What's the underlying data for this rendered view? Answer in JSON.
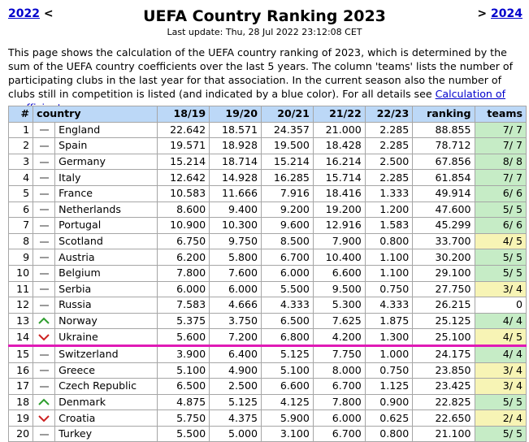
{
  "nav": {
    "prev": "2022",
    "prev_arrow": "<",
    "next_arrow": ">",
    "next": "2024"
  },
  "header": {
    "title": "UEFA Country Ranking 2023",
    "updated": "Last update: Thu, 28 Jul 2022 23:12:08 CET"
  },
  "intro": {
    "text": "This page shows the calculation of the UEFA country ranking of 2023, which is determined by the sum of the UEFA country coefficients over the last 5 years. The column 'teams' lists the number of participating clubs in the last year for that association. In the current season also the number of clubs still in competition is listed (and indicated by a blue color). For all details see ",
    "link": "Calculation of coefficients",
    "end": "."
  },
  "colors": {
    "up": "#2e9e2e",
    "down": "#cc2222",
    "neutral": "#9a9a9a",
    "cutline": "#e01ab6",
    "header_bg": "#bcd8f7",
    "teams_full": "#c6ecc6",
    "teams_partial": "#f7f4b5"
  },
  "table": {
    "headers": [
      "#",
      "country",
      "18/19",
      "19/20",
      "20/21",
      "21/22",
      "22/23",
      "ranking",
      "teams"
    ],
    "rows": [
      {
        "rank": "1",
        "trend": "neutral",
        "country": "England",
        "s1": "22.642",
        "s2": "18.571",
        "s3": "24.357",
        "s4": "21.000",
        "s5": "2.285",
        "ranking": "88.855",
        "teams": "7/ 7",
        "teams_status": "full"
      },
      {
        "rank": "2",
        "trend": "neutral",
        "country": "Spain",
        "s1": "19.571",
        "s2": "18.928",
        "s3": "19.500",
        "s4": "18.428",
        "s5": "2.285",
        "ranking": "78.712",
        "teams": "7/ 7",
        "teams_status": "full"
      },
      {
        "rank": "3",
        "trend": "neutral",
        "country": "Germany",
        "s1": "15.214",
        "s2": "18.714",
        "s3": "15.214",
        "s4": "16.214",
        "s5": "2.500",
        "ranking": "67.856",
        "teams": "8/ 8",
        "teams_status": "full"
      },
      {
        "rank": "4",
        "trend": "neutral",
        "country": "Italy",
        "s1": "12.642",
        "s2": "14.928",
        "s3": "16.285",
        "s4": "15.714",
        "s5": "2.285",
        "ranking": "61.854",
        "teams": "7/ 7",
        "teams_status": "full"
      },
      {
        "rank": "5",
        "trend": "neutral",
        "country": "France",
        "s1": "10.583",
        "s2": "11.666",
        "s3": "7.916",
        "s4": "18.416",
        "s5": "1.333",
        "ranking": "49.914",
        "teams": "6/ 6",
        "teams_status": "full"
      },
      {
        "rank": "6",
        "trend": "neutral",
        "country": "Netherlands",
        "s1": "8.600",
        "s2": "9.400",
        "s3": "9.200",
        "s4": "19.200",
        "s5": "1.200",
        "ranking": "47.600",
        "teams": "5/ 5",
        "teams_status": "full"
      },
      {
        "rank": "7",
        "trend": "neutral",
        "country": "Portugal",
        "s1": "10.900",
        "s2": "10.300",
        "s3": "9.600",
        "s4": "12.916",
        "s5": "1.583",
        "ranking": "45.299",
        "teams": "6/ 6",
        "teams_status": "full"
      },
      {
        "rank": "8",
        "trend": "neutral",
        "country": "Scotland",
        "s1": "6.750",
        "s2": "9.750",
        "s3": "8.500",
        "s4": "7.900",
        "s5": "0.800",
        "ranking": "33.700",
        "teams": "4/ 5",
        "teams_status": "partial"
      },
      {
        "rank": "9",
        "trend": "neutral",
        "country": "Austria",
        "s1": "6.200",
        "s2": "5.800",
        "s3": "6.700",
        "s4": "10.400",
        "s5": "1.100",
        "ranking": "30.200",
        "teams": "5/ 5",
        "teams_status": "full"
      },
      {
        "rank": "10",
        "trend": "neutral",
        "country": "Belgium",
        "s1": "7.800",
        "s2": "7.600",
        "s3": "6.000",
        "s4": "6.600",
        "s5": "1.100",
        "ranking": "29.100",
        "teams": "5/ 5",
        "teams_status": "full"
      },
      {
        "rank": "11",
        "trend": "neutral",
        "country": "Serbia",
        "s1": "6.000",
        "s2": "6.000",
        "s3": "5.500",
        "s4": "9.500",
        "s5": "0.750",
        "ranking": "27.750",
        "teams": "3/ 4",
        "teams_status": "partial"
      },
      {
        "rank": "12",
        "trend": "neutral",
        "country": "Russia",
        "s1": "7.583",
        "s2": "4.666",
        "s3": "4.333",
        "s4": "5.300",
        "s5": "4.333",
        "ranking": "26.215",
        "teams": "0",
        "teams_status": "out"
      },
      {
        "rank": "13",
        "trend": "up",
        "country": "Norway",
        "s1": "5.375",
        "s2": "3.750",
        "s3": "6.500",
        "s4": "7.625",
        "s5": "1.875",
        "ranking": "25.125",
        "teams": "4/ 4",
        "teams_status": "full"
      },
      {
        "rank": "14",
        "trend": "down",
        "country": "Ukraine",
        "s1": "5.600",
        "s2": "7.200",
        "s3": "6.800",
        "s4": "4.200",
        "s5": "1.300",
        "ranking": "25.100",
        "teams": "4/ 5",
        "teams_status": "partial",
        "cutline": true
      },
      {
        "rank": "15",
        "trend": "neutral",
        "country": "Switzerland",
        "s1": "3.900",
        "s2": "6.400",
        "s3": "5.125",
        "s4": "7.750",
        "s5": "1.000",
        "ranking": "24.175",
        "teams": "4/ 4",
        "teams_status": "full"
      },
      {
        "rank": "16",
        "trend": "neutral",
        "country": "Greece",
        "s1": "5.100",
        "s2": "4.900",
        "s3": "5.100",
        "s4": "8.000",
        "s5": "0.750",
        "ranking": "23.850",
        "teams": "3/ 4",
        "teams_status": "partial"
      },
      {
        "rank": "17",
        "trend": "neutral",
        "country": "Czech Republic",
        "s1": "6.500",
        "s2": "2.500",
        "s3": "6.600",
        "s4": "6.700",
        "s5": "1.125",
        "ranking": "23.425",
        "teams": "3/ 4",
        "teams_status": "partial"
      },
      {
        "rank": "18",
        "trend": "up",
        "country": "Denmark",
        "s1": "4.875",
        "s2": "5.125",
        "s3": "4.125",
        "s4": "7.800",
        "s5": "0.900",
        "ranking": "22.825",
        "teams": "5/ 5",
        "teams_status": "full"
      },
      {
        "rank": "19",
        "trend": "down",
        "country": "Croatia",
        "s1": "5.750",
        "s2": "4.375",
        "s3": "5.900",
        "s4": "6.000",
        "s5": "0.625",
        "ranking": "22.650",
        "teams": "2/ 4",
        "teams_status": "partial"
      },
      {
        "rank": "20",
        "trend": "neutral",
        "country": "Turkey",
        "s1": "5.500",
        "s2": "5.000",
        "s3": "3.100",
        "s4": "6.700",
        "s5": "0.800",
        "ranking": "21.100",
        "teams": "5/ 5",
        "teams_status": "full"
      }
    ]
  }
}
